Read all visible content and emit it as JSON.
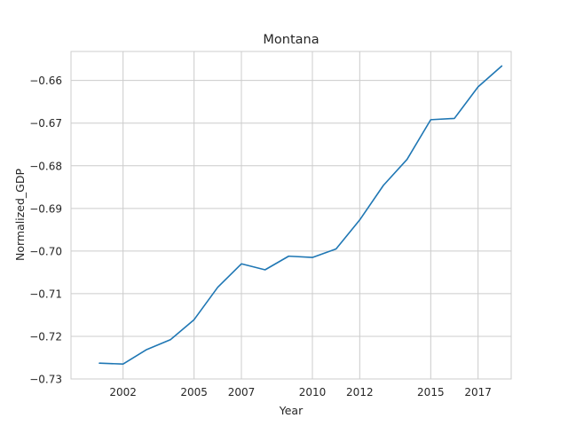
{
  "chart_data": {
    "type": "line",
    "title": "Montana",
    "xlabel": "Year",
    "ylabel": "Normalized_GDP",
    "xlim": [
      1999.8,
      2018.4
    ],
    "ylim": [
      -0.73,
      -0.6532
    ],
    "xticks": [
      2002,
      2005,
      2007,
      2010,
      2012,
      2015,
      2017
    ],
    "xtick_labels": [
      "2002",
      "2005",
      "2007",
      "2010",
      "2012",
      "2015",
      "2017"
    ],
    "yticks": [
      -0.73,
      -0.72,
      -0.71,
      -0.7,
      -0.69,
      -0.68,
      -0.67,
      -0.66
    ],
    "ytick_labels": [
      "−0.73",
      "−0.72",
      "−0.71",
      "−0.70",
      "−0.69",
      "−0.68",
      "−0.67",
      "−0.66"
    ],
    "grid": true,
    "color": "#1f77b4",
    "series": [
      {
        "x": [
          2001,
          2002,
          2003,
          2004,
          2005,
          2006,
          2007,
          2008,
          2009,
          2010,
          2011,
          2012,
          2013,
          2014,
          2015,
          2016,
          2017,
          2018
        ],
        "y": [
          -0.7263,
          -0.7265,
          -0.7231,
          -0.7208,
          -0.7161,
          -0.7085,
          -0.703,
          -0.7044,
          -0.7012,
          -0.7015,
          -0.6995,
          -0.6927,
          -0.6846,
          -0.6785,
          -0.6692,
          -0.6689,
          -0.6615,
          -0.6566
        ]
      }
    ]
  }
}
